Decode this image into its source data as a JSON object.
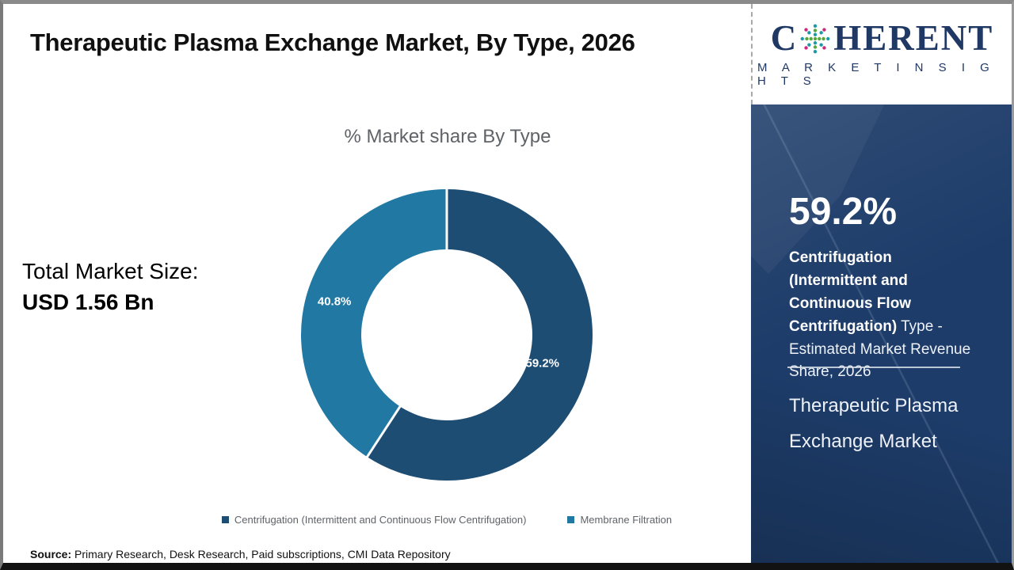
{
  "header": {
    "title": "Therapeutic Plasma Exchange Market, By Type, 2026"
  },
  "logo": {
    "brand_first": "C",
    "brand_rest": "HERENT",
    "tagline": "M A R K E T   I N S I G H T S",
    "navy": "#1f3864",
    "globe_dot_colors": {
      "magenta": "#c9297e",
      "teal": "#1d9aa8",
      "green": "#56a83c"
    }
  },
  "chart_data": {
    "type": "pie",
    "variant": "donut",
    "title": "% Market share By Type",
    "slices": [
      {
        "label": "Centrifugation (Intermittent and Continuous Flow Centrifugation)",
        "value": 59.2,
        "color": "#1e4d74",
        "label_radius": 126
      },
      {
        "label": "Membrane Filtration",
        "value": 40.8,
        "color": "#2178a3",
        "label_radius": 148
      }
    ],
    "start_angle_deg": -90,
    "direction": "clockwise",
    "inner_radius": 108,
    "outer_radius": 184,
    "legend_position": "bottom",
    "label_format": "percent_one_decimal"
  },
  "stats": {
    "total_label": "Total Market Size:",
    "total_value": "USD 1.56 Bn"
  },
  "sidebar": {
    "headline_value": "59.2%",
    "bold_text": "Centrifugation (Intermittent and Continuous Flow Centrifugation)",
    "regular_text": " Type - Estimated Market Revenue Share, 2026",
    "market_name": "Therapeutic Plasma Exchange Market",
    "bg_color": "#1d3c69"
  },
  "footer": {
    "source_label": "Source:",
    "source_text": " Primary Research, Desk Research, Paid subscriptions, CMI Data Repository"
  }
}
